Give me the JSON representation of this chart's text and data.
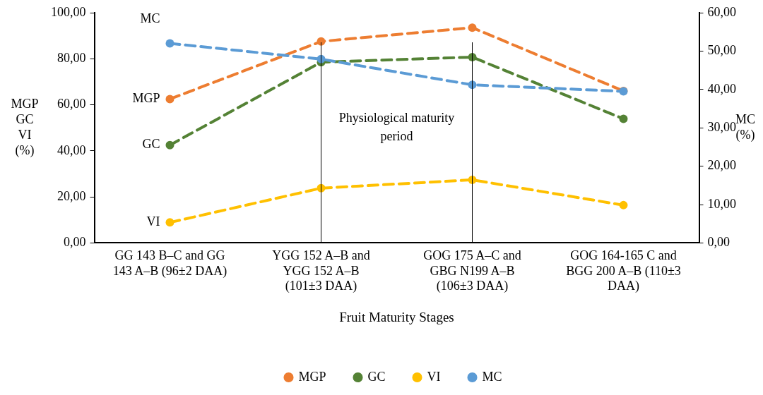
{
  "chart_data": {
    "type": "line",
    "xlabel": "Fruit Maturity Stages",
    "ylabel": "MGP\nGC\nVI\n(%)",
    "y2label": "MC\n(%)",
    "categories": [
      "GG 143 B–C and GG 143 A–B (96±2 DAA)",
      "YGG 152 A–B and YGG 152 A–B (101±3 DAA)",
      "GOG 175 A–C and GBG N199 A–B (106±3 DAA)",
      "GOG 164-165 C and BGG 200 A–B (110±3 DAA)"
    ],
    "series": [
      {
        "name": "MGP",
        "color": "#ed7d31",
        "values": [
          62.5,
          87.5,
          93.5,
          66
        ]
      },
      {
        "name": "GC",
        "color": "#548235",
        "values": [
          42.5,
          78.5,
          80.7,
          53.9
        ]
      },
      {
        "name": "VI",
        "color": "#ffc000",
        "values": [
          8.9,
          23.8,
          27.4,
          16.4
        ]
      },
      {
        "name": "MC",
        "color": "#5b9bd5",
        "axis": "y2",
        "values": [
          52,
          47.9,
          41.2,
          39.5
        ]
      }
    ],
    "ylim": [
      0,
      100
    ],
    "yticks": [
      {
        "value": 0,
        "label": "0,00"
      },
      {
        "value": 20,
        "label": "20,00"
      },
      {
        "value": 40,
        "label": "40,00"
      },
      {
        "value": 60,
        "label": "60,00"
      },
      {
        "value": 80,
        "label": "80,00"
      },
      {
        "value": 100,
        "label": "100,00"
      }
    ],
    "y2lim": [
      0,
      60
    ],
    "y2ticks": [
      {
        "value": 0,
        "label": "0,00"
      },
      {
        "value": 10,
        "label": "10,00"
      },
      {
        "value": 20,
        "label": "20,00"
      },
      {
        "value": 30,
        "label": "30,00"
      },
      {
        "value": 40,
        "label": "40,00"
      },
      {
        "value": 50,
        "label": "50,00"
      },
      {
        "value": 60,
        "label": "60,00"
      }
    ],
    "ref_lines": [
      {
        "axis": "x",
        "value": "YGG 152 A–B and YGG 152 A–B (101±3 DAA)"
      },
      {
        "axis": "x",
        "value": "GOG 175 A–C and GBG N199 A–B (106±3 DAA)"
      }
    ],
    "annotations": [
      "Physiological maturity period"
    ],
    "grid": false,
    "legend": "bottom",
    "marker": "circle",
    "line_style": "dashed"
  }
}
